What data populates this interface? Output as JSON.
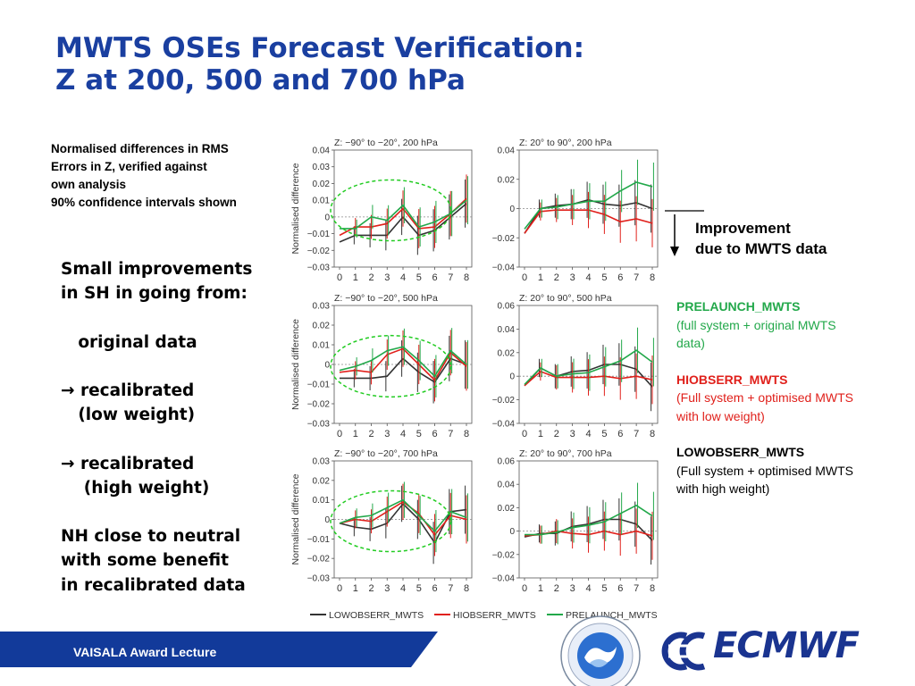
{
  "title": {
    "line1": "MWTS OSEs Forecast Verification:",
    "line2": "Z at 200, 500 and 700 hPa"
  },
  "note": [
    "Normalised differences in RMS",
    "Errors in Z, verified against",
    "own analysis",
    "90% confidence intervals shown"
  ],
  "bullets": [
    "Small improvements",
    "in SH in going from:",
    "",
    "   original data",
    "",
    "→ recalibrated",
    "   (low weight)",
    "",
    "→ recalibrated",
    "    (high weight)",
    "",
    "NH close to neutral",
    "with some benefit",
    "in recalibrated data"
  ],
  "improvement": {
    "line1": "Improvement",
    "line2": "due to MWTS data"
  },
  "legend_side": [
    {
      "name": "PRELAUNCH_MWTS",
      "color": "#22a84a",
      "desc": "(full system + original MWTS\n data)"
    },
    {
      "name": "HIOBSERR_MWTS",
      "color": "#e0201b",
      "desc": "(Full system + optimised MWTS\nwith low weight)"
    },
    {
      "name": "LOWOBSERR_MWTS",
      "color": "#000000",
      "desc": "(Full system + optimised MWTS\nwith high weight)"
    }
  ],
  "footer": {
    "label": "VAISALA Award Lecture",
    "logo_text": "ECMWF"
  },
  "colors": {
    "title": "#1a3fa0",
    "low": "#333333",
    "hi": "#e0201b",
    "pre": "#22a84a",
    "footer": "#123a9a",
    "ellipse": "#22cc22"
  },
  "chart_data": [
    {
      "type": "line",
      "title": "Z: −90° to −20°, 200 hPa",
      "ylabel": "Normalised difference",
      "x": [
        0,
        1,
        2,
        3,
        4,
        5,
        6,
        7,
        8
      ],
      "ylim": [
        -0.03,
        0.04
      ],
      "yticks": [
        0.04,
        0.03,
        0.02,
        0.01,
        0,
        -0.01,
        -0.02,
        -0.03
      ],
      "xticks": [
        0,
        1,
        2,
        3,
        4,
        5,
        6,
        7,
        8
      ],
      "highlight_ellipse": true,
      "series": [
        {
          "name": "LOWOBSERR_MWTS",
          "values": [
            -0.015,
            -0.011,
            -0.011,
            -0.011,
            0,
            -0.011,
            -0.008,
            0,
            0.008
          ]
        },
        {
          "name": "HIOBSERR_MWTS",
          "values": [
            -0.011,
            -0.006,
            -0.006,
            -0.004,
            0.005,
            -0.007,
            -0.006,
            0.002,
            0.011
          ]
        },
        {
          "name": "PRELAUNCH_MWTS",
          "values": [
            -0.007,
            -0.007,
            0,
            -0.002,
            0.007,
            -0.006,
            -0.003,
            0.002,
            0.01
          ]
        }
      ]
    },
    {
      "type": "line",
      "title": "Z: 20° to 90°, 200 hPa",
      "x": [
        0,
        1,
        2,
        3,
        4,
        5,
        6,
        7,
        8
      ],
      "ylim": [
        -0.04,
        0.04
      ],
      "yticks": [
        0.04,
        0.02,
        0,
        -0.02,
        -0.04
      ],
      "xticks": [
        0,
        1,
        2,
        3,
        4,
        5,
        6,
        7,
        8
      ],
      "series": [
        {
          "name": "LOWOBSERR_MWTS",
          "values": [
            -0.017,
            0,
            0.002,
            0.003,
            0.006,
            0.003,
            0.002,
            0.004,
            0
          ]
        },
        {
          "name": "HIOBSERR_MWTS",
          "values": [
            -0.017,
            -0.002,
            -0.001,
            -0.001,
            -0.001,
            -0.004,
            -0.009,
            -0.007,
            -0.01
          ]
        },
        {
          "name": "PRELAUNCH_MWTS",
          "values": [
            -0.014,
            0,
            0.001,
            0.003,
            0.005,
            0.005,
            0.012,
            0.018,
            0.015
          ]
        }
      ]
    },
    {
      "type": "line",
      "title": "Z: −90° to −20°, 500 hPa",
      "ylabel": "Normalised difference",
      "x": [
        0,
        1,
        2,
        3,
        4,
        5,
        6,
        7,
        8
      ],
      "ylim": [
        -0.03,
        0.03
      ],
      "yticks": [
        0.03,
        0.02,
        0.01,
        0,
        -0.01,
        -0.02,
        -0.03
      ],
      "xticks": [
        0,
        1,
        2,
        3,
        4,
        5,
        6,
        7,
        8
      ],
      "highlight_ellipse": true,
      "series": [
        {
          "name": "LOWOBSERR_MWTS",
          "values": [
            -0.007,
            -0.007,
            -0.007,
            -0.006,
            0.003,
            -0.004,
            -0.009,
            0.003,
            0
          ]
        },
        {
          "name": "HIOBSERR_MWTS",
          "values": [
            -0.004,
            -0.003,
            -0.004,
            0.005,
            0.008,
            0,
            -0.008,
            0.006,
            -0.001
          ]
        },
        {
          "name": "PRELAUNCH_MWTS",
          "values": [
            -0.003,
            -0.001,
            0.002,
            0.007,
            0.009,
            0.002,
            -0.006,
            0.007,
            0
          ]
        }
      ]
    },
    {
      "type": "line",
      "title": "Z: 20° to 90°, 500 hPa",
      "x": [
        0,
        1,
        2,
        3,
        4,
        5,
        6,
        7,
        8
      ],
      "ylim": [
        -0.04,
        0.06
      ],
      "yticks": [
        0.06,
        0.04,
        0.02,
        0,
        -0.02,
        -0.04
      ],
      "xticks": [
        0,
        1,
        2,
        3,
        4,
        5,
        6,
        7,
        8
      ],
      "series": [
        {
          "name": "LOWOBSERR_MWTS",
          "values": [
            -0.008,
            0.007,
            0,
            0.004,
            0.005,
            0.01,
            0.01,
            0.006,
            -0.009
          ]
        },
        {
          "name": "HIOBSERR_MWTS",
          "values": [
            -0.008,
            0.004,
            -0.001,
            -0.001,
            -0.001,
            0,
            -0.002,
            0,
            -0.003
          ]
        },
        {
          "name": "PRELAUNCH_MWTS",
          "values": [
            -0.007,
            0.007,
            0,
            0.002,
            0.003,
            0.008,
            0.013,
            0.022,
            0.012
          ]
        }
      ]
    },
    {
      "type": "line",
      "title": "Z: −90° to −20°, 700 hPa",
      "ylabel": "Normalised difference",
      "x": [
        0,
        1,
        2,
        3,
        4,
        5,
        6,
        7,
        8
      ],
      "ylim": [
        -0.03,
        0.03
      ],
      "yticks": [
        0.03,
        0.02,
        0.01,
        0,
        -0.01,
        -0.02,
        -0.03
      ],
      "xticks": [
        0,
        1,
        2,
        3,
        4,
        5,
        6,
        7,
        8
      ],
      "highlight_ellipse": true,
      "series": [
        {
          "name": "LOWOBSERR_MWTS",
          "values": [
            -0.002,
            -0.004,
            -0.005,
            -0.002,
            0.008,
            0,
            -0.012,
            0.004,
            0.005
          ]
        },
        {
          "name": "HIOBSERR_MWTS",
          "values": [
            -0.002,
            0,
            -0.001,
            0.004,
            0.009,
            0.003,
            -0.008,
            0.002,
            0
          ]
        },
        {
          "name": "PRELAUNCH_MWTS",
          "values": [
            -0.002,
            0.001,
            0.002,
            0.006,
            0.01,
            0.002,
            -0.006,
            0.004,
            0.001
          ]
        }
      ]
    },
    {
      "type": "line",
      "title": "Z: 20° to 90°, 700 hPa",
      "x": [
        0,
        1,
        2,
        3,
        4,
        5,
        6,
        7,
        8
      ],
      "ylim": [
        -0.04,
        0.06
      ],
      "yticks": [
        0.06,
        0.04,
        0.02,
        0,
        -0.02,
        -0.04
      ],
      "xticks": [
        0,
        1,
        2,
        3,
        4,
        5,
        6,
        7,
        8
      ],
      "series": [
        {
          "name": "LOWOBSERR_MWTS",
          "values": [
            -0.005,
            -0.002,
            -0.002,
            0.004,
            0.006,
            0.01,
            0.01,
            0.006,
            -0.008
          ]
        },
        {
          "name": "HIOBSERR_MWTS",
          "values": [
            -0.004,
            -0.003,
            0,
            -0.002,
            -0.003,
            0,
            -0.003,
            0,
            -0.004
          ]
        },
        {
          "name": "PRELAUNCH_MWTS",
          "values": [
            -0.003,
            -0.003,
            -0.001,
            0.003,
            0.005,
            0.008,
            0.015,
            0.022,
            0.013
          ]
        }
      ]
    }
  ],
  "bottom_legend": [
    "LOWOBSERR_MWTS",
    "HIOBSERR_MWTS",
    "PRELAUNCH_MWTS"
  ]
}
